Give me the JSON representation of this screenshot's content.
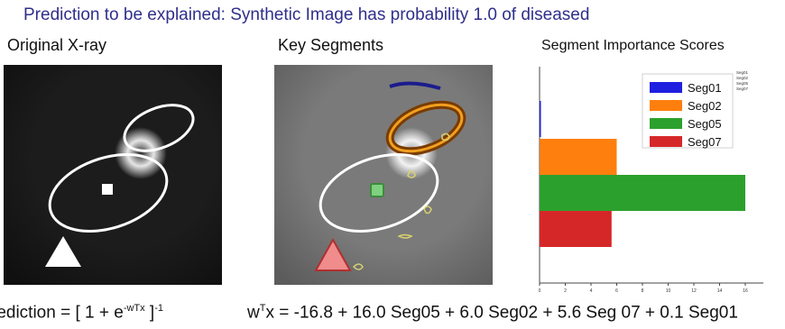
{
  "headline": "Prediction to be explained:  Synthetic Image has probability 1.0 of  diseased",
  "panels": {
    "original": "Original X-ray",
    "key_segments": "Key Segments",
    "scores": "Segment Importance Scores"
  },
  "formula_left": {
    "pre": "rediction = [ 1 + e",
    "sup": "-wTx",
    "post": " ]",
    "post_sup": "-1"
  },
  "formula_right": {
    "w": "w",
    "sup": "T",
    "rest": "x = -16.8 + 16.0 Seg05 + 6.0 Seg02 + 5.6 Seg 07 + 0.1 Seg01"
  },
  "chart_data": {
    "type": "bar",
    "orientation": "horizontal",
    "categories": [
      "Seg01",
      "Seg02",
      "Seg05",
      "Seg07"
    ],
    "values": [
      0.1,
      6.0,
      16.0,
      5.6
    ],
    "colors": [
      "#1f1fe0",
      "#ff7f0e",
      "#2ca02c",
      "#d62728"
    ],
    "title": "Segment Importance Scores",
    "xlim": [
      0,
      16
    ],
    "xticks": [
      "0",
      "2",
      "4",
      "6",
      "8",
      "10",
      "12",
      "14",
      "16"
    ],
    "legend_placement": "top-right",
    "legend_small_text": [
      "Seg01",
      "Seg02",
      "Seg05",
      "Seg07"
    ]
  }
}
